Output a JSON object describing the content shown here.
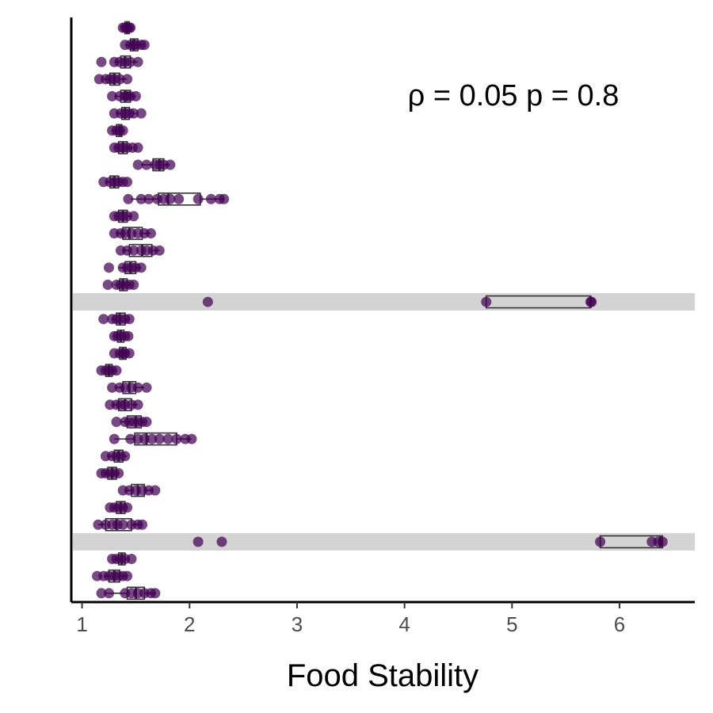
{
  "chart_data": {
    "type": "boxplot",
    "xlabel": "Food Stability",
    "ylabel": "",
    "xlim": [
      0.9,
      6.7
    ],
    "x_ticks": [
      "1",
      "2",
      "3",
      "4",
      "5",
      "6"
    ],
    "y_ticks_visible": false,
    "annotation": "ρ = 0.05 p = 0.8",
    "grid": false,
    "colors": {
      "point": "#440154",
      "box": "#333333",
      "highlight": "#d3d3d3",
      "axis": "#000000"
    },
    "rows": [
      {
        "points": [
          1.38,
          1.4,
          1.42,
          1.44,
          1.45
        ],
        "box": [
          1.38,
          1.4,
          1.42,
          1.44,
          1.45
        ]
      },
      {
        "points": [
          1.4,
          1.45,
          1.48,
          1.5,
          1.55,
          1.58
        ],
        "box": [
          1.4,
          1.45,
          1.48,
          1.52,
          1.58
        ]
      },
      {
        "points": [
          1.18,
          1.3,
          1.35,
          1.4,
          1.45,
          1.52
        ],
        "box": [
          1.3,
          1.36,
          1.4,
          1.45,
          1.52
        ]
      },
      {
        "points": [
          1.16,
          1.22,
          1.26,
          1.3,
          1.35,
          1.42
        ],
        "box": [
          1.2,
          1.26,
          1.3,
          1.35,
          1.42
        ]
      },
      {
        "points": [
          1.28,
          1.35,
          1.4,
          1.42,
          1.45,
          1.5
        ],
        "box": [
          1.3,
          1.36,
          1.4,
          1.45,
          1.5
        ]
      },
      {
        "points": [
          1.3,
          1.36,
          1.4,
          1.44,
          1.48,
          1.55
        ],
        "box": [
          1.32,
          1.37,
          1.4,
          1.44,
          1.5
        ]
      },
      {
        "points": [
          1.28,
          1.32,
          1.35,
          1.38
        ],
        "box": [
          1.28,
          1.32,
          1.35,
          1.37,
          1.4
        ]
      },
      {
        "points": [
          1.3,
          1.34,
          1.38,
          1.42,
          1.47,
          1.52
        ],
        "box": [
          1.3,
          1.34,
          1.38,
          1.42,
          1.47
        ]
      },
      {
        "points": [
          1.52,
          1.6,
          1.68,
          1.72,
          1.76,
          1.82
        ],
        "box": [
          1.55,
          1.66,
          1.72,
          1.76,
          1.82
        ]
      },
      {
        "points": [
          1.2,
          1.26,
          1.3,
          1.34,
          1.38,
          1.42
        ],
        "box": [
          1.22,
          1.26,
          1.3,
          1.34,
          1.38
        ]
      },
      {
        "points": [
          1.43,
          1.55,
          1.62,
          1.7,
          1.76,
          1.82,
          1.9,
          2.08,
          2.2,
          2.28,
          2.32
        ],
        "box": [
          1.45,
          1.71,
          1.8,
          2.1,
          2.32
        ]
      },
      {
        "points": [
          1.3,
          1.34,
          1.38,
          1.42,
          1.48
        ],
        "box": [
          1.3,
          1.34,
          1.38,
          1.42,
          1.46
        ]
      },
      {
        "points": [
          1.3,
          1.36,
          1.4,
          1.46,
          1.52,
          1.58,
          1.64
        ],
        "box": [
          1.32,
          1.38,
          1.44,
          1.56,
          1.64
        ]
      },
      {
        "points": [
          1.36,
          1.42,
          1.48,
          1.55,
          1.6,
          1.66,
          1.72
        ],
        "box": [
          1.38,
          1.44,
          1.56,
          1.65,
          1.72
        ]
      },
      {
        "points": [
          1.25,
          1.38,
          1.42,
          1.46,
          1.5,
          1.55
        ],
        "box": [
          1.34,
          1.4,
          1.45,
          1.5,
          1.55
        ]
      },
      {
        "points": [
          1.24,
          1.32,
          1.36,
          1.4,
          1.44,
          1.48
        ],
        "box": [
          1.3,
          1.35,
          1.38,
          1.42,
          1.46
        ]
      },
      {
        "highlight": true,
        "points": [
          2.17,
          4.76,
          5.73,
          5.74
        ],
        "box": [
          4.76,
          4.76,
          5.73,
          5.73,
          5.74
        ]
      },
      {
        "points": [
          1.2,
          1.28,
          1.32,
          1.36,
          1.4,
          1.44
        ],
        "box": [
          1.28,
          1.32,
          1.35,
          1.4,
          1.44
        ]
      },
      {
        "points": [
          1.3,
          1.33,
          1.36,
          1.4,
          1.43
        ],
        "box": [
          1.3,
          1.33,
          1.36,
          1.39,
          1.42
        ]
      },
      {
        "points": [
          1.3,
          1.35,
          1.38,
          1.4,
          1.44
        ],
        "box": [
          1.32,
          1.35,
          1.38,
          1.41,
          1.44
        ]
      },
      {
        "points": [
          1.18,
          1.22,
          1.25,
          1.28,
          1.32
        ],
        "box": [
          1.2,
          1.22,
          1.25,
          1.28,
          1.31
        ]
      },
      {
        "points": [
          1.28,
          1.35,
          1.4,
          1.46,
          1.52,
          1.6
        ],
        "box": [
          1.32,
          1.38,
          1.44,
          1.5,
          1.58
        ]
      },
      {
        "points": [
          1.26,
          1.32,
          1.36,
          1.4,
          1.46,
          1.52
        ],
        "box": [
          1.28,
          1.34,
          1.4,
          1.46,
          1.52
        ]
      },
      {
        "points": [
          1.32,
          1.4,
          1.44,
          1.48,
          1.52,
          1.56,
          1.6
        ],
        "box": [
          1.36,
          1.42,
          1.5,
          1.55,
          1.6
        ]
      },
      {
        "points": [
          1.3,
          1.45,
          1.52,
          1.58,
          1.65,
          1.72,
          1.8,
          1.88,
          1.96,
          2.02
        ],
        "box": [
          1.3,
          1.49,
          1.6,
          1.88,
          2.02
        ]
      },
      {
        "points": [
          1.22,
          1.28,
          1.32,
          1.36,
          1.4
        ],
        "box": [
          1.24,
          1.3,
          1.34,
          1.38,
          1.42
        ]
      },
      {
        "points": [
          1.18,
          1.22,
          1.26,
          1.3,
          1.34
        ],
        "box": [
          1.2,
          1.24,
          1.28,
          1.32,
          1.35
        ]
      },
      {
        "points": [
          1.38,
          1.44,
          1.5,
          1.56,
          1.62,
          1.68
        ],
        "box": [
          1.4,
          1.46,
          1.52,
          1.58,
          1.66
        ]
      },
      {
        "points": [
          1.26,
          1.3,
          1.34,
          1.38,
          1.42
        ],
        "box": [
          1.28,
          1.32,
          1.36,
          1.4,
          1.42
        ]
      },
      {
        "points": [
          1.15,
          1.22,
          1.28,
          1.33,
          1.38,
          1.46,
          1.52,
          1.56
        ],
        "box": [
          1.15,
          1.22,
          1.32,
          1.46,
          1.56
        ]
      },
      {
        "highlight": true,
        "points": [
          2.08,
          2.3,
          5.82,
          6.3,
          6.36,
          6.4
        ],
        "box": [
          5.82,
          5.82,
          6.38,
          6.4,
          6.4
        ]
      },
      {
        "points": [
          1.28,
          1.32,
          1.36,
          1.4,
          1.46
        ],
        "box": [
          1.3,
          1.34,
          1.37,
          1.4,
          1.44
        ]
      },
      {
        "points": [
          1.14,
          1.2,
          1.25,
          1.3,
          1.34,
          1.38,
          1.42
        ],
        "box": [
          1.2,
          1.25,
          1.3,
          1.35,
          1.42
        ]
      },
      {
        "points": [
          1.18,
          1.25,
          1.4,
          1.46,
          1.52,
          1.58,
          1.64,
          1.68
        ],
        "box": [
          1.22,
          1.42,
          1.5,
          1.58,
          1.68
        ]
      }
    ]
  }
}
